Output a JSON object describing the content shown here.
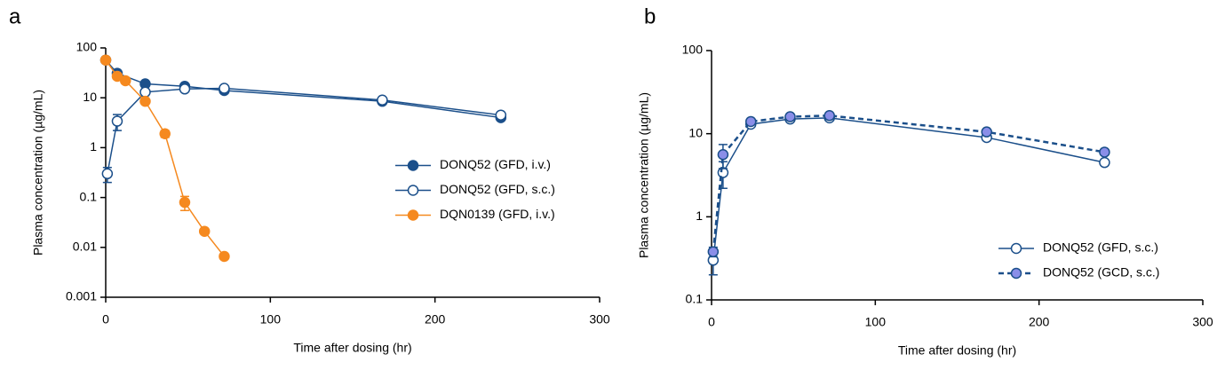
{
  "chart_data": [
    {
      "type": "line",
      "panel_label": "a",
      "x_label": "Time after dosing (hr)",
      "y_label": "Plasma concentration (µg/mL)",
      "xlim": [
        0,
        300
      ],
      "xticks": [
        0,
        100,
        200,
        300
      ],
      "ylim": [
        0.001,
        100
      ],
      "yticks": [
        0.001,
        0.01,
        0.1,
        1,
        10,
        100
      ],
      "log_y": true,
      "grid": false,
      "legend": "right",
      "series": [
        {
          "name": "DONQ52  (GFD, i.v.)",
          "color": "#1b4f8a",
          "marker_fill": "#1b4f8a",
          "line_style": "solid",
          "x": [
            0,
            7,
            24,
            48,
            72,
            168,
            240
          ],
          "values": [
            57,
            31,
            19,
            17,
            14,
            8.5,
            4
          ],
          "errors": [
            null,
            null,
            null,
            null,
            null,
            null,
            null
          ]
        },
        {
          "name": "DONQ52 (GFD, s.c.)",
          "color": "#1b4f8a",
          "marker_fill": "#ffffff",
          "line_style": "solid",
          "x": [
            1,
            7,
            24,
            48,
            72,
            168,
            240
          ],
          "values": [
            0.3,
            3.4,
            13,
            15,
            15.5,
            9,
            4.5
          ],
          "errors": [
            0.1,
            1.2,
            null,
            null,
            null,
            null,
            null
          ]
        },
        {
          "name": "DQN0139 (GFD, i.v.)",
          "color": "#f5891f",
          "marker_fill": "#f5891f",
          "line_style": "solid",
          "x": [
            0,
            7,
            12,
            24,
            36,
            48,
            60,
            72
          ],
          "values": [
            57,
            27,
            22,
            8.5,
            1.9,
            0.08,
            0.021,
            0.0066
          ],
          "errors": [
            null,
            null,
            null,
            null,
            0.3,
            0.025,
            null,
            null
          ]
        }
      ]
    },
    {
      "type": "line",
      "panel_label": "b",
      "x_label": "Time after dosing (hr)",
      "y_label": "Plasma concentration (µg/mL)",
      "xlim": [
        0,
        300
      ],
      "xticks": [
        0,
        100,
        200,
        300
      ],
      "ylim": [
        0.1,
        100
      ],
      "yticks": [
        0.1,
        1,
        10,
        100
      ],
      "log_y": true,
      "grid": false,
      "legend": "lower right",
      "series": [
        {
          "name": "DONQ52  (GFD, s.c.)",
          "color": "#1b4f8a",
          "marker_fill": "#ffffff",
          "line_style": "solid",
          "x": [
            1,
            7,
            24,
            48,
            72,
            168,
            240
          ],
          "values": [
            0.3,
            3.4,
            13,
            15,
            15.5,
            9,
            4.5
          ],
          "errors": [
            0.1,
            1.2,
            null,
            null,
            null,
            null,
            null
          ]
        },
        {
          "name": "DONQ52 (GCD, s.c.)",
          "color": "#1b4f8a",
          "marker_fill": "#8a8ee8",
          "line_style": "dashed",
          "x": [
            1,
            7,
            24,
            48,
            72,
            168,
            240
          ],
          "values": [
            0.38,
            5.6,
            14,
            16,
            16.5,
            10.5,
            6
          ],
          "errors": [
            0.05,
            1.8,
            null,
            null,
            null,
            null,
            null
          ]
        }
      ]
    }
  ]
}
